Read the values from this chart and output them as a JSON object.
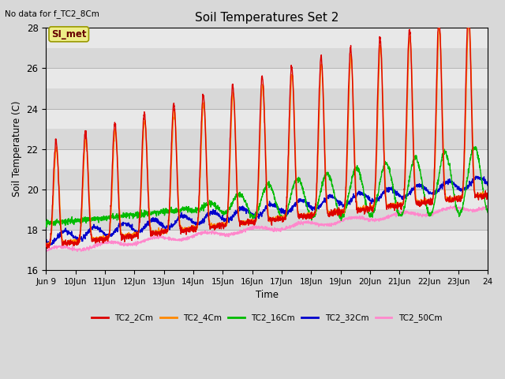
{
  "title": "Soil Temperatures Set 2",
  "no_data_text": "No data for f_TC2_8Cm",
  "xlabel": "Time",
  "ylabel": "Soil Temperature (C)",
  "ylim": [
    16,
    28
  ],
  "si_met_label": "SI_met",
  "legend_entries": [
    {
      "label": "TC2_2Cm",
      "color": "#dd0000"
    },
    {
      "label": "TC2_4Cm",
      "color": "#ff8800"
    },
    {
      "label": "TC2_16Cm",
      "color": "#00bb00"
    },
    {
      "label": "TC2_32Cm",
      "color": "#0000cc"
    },
    {
      "label": "TC2_50Cm",
      "color": "#ff88cc"
    }
  ],
  "bg_light": "#e8e8e8",
  "bg_dark": "#d4d4d4",
  "fig_bg": "#d8d8d8",
  "n_days": 15,
  "points_per_day": 144,
  "x_tick_labels": [
    "Jun 9",
    "10Jun",
    "11Jun",
    "12Jun",
    "13Jun",
    "14Jun",
    "15Jun",
    "16Jun",
    "17Jun",
    "18Jun",
    "19Jun",
    "20Jun",
    "21Jun",
    "22Jun",
    "23Jun",
    "24"
  ]
}
